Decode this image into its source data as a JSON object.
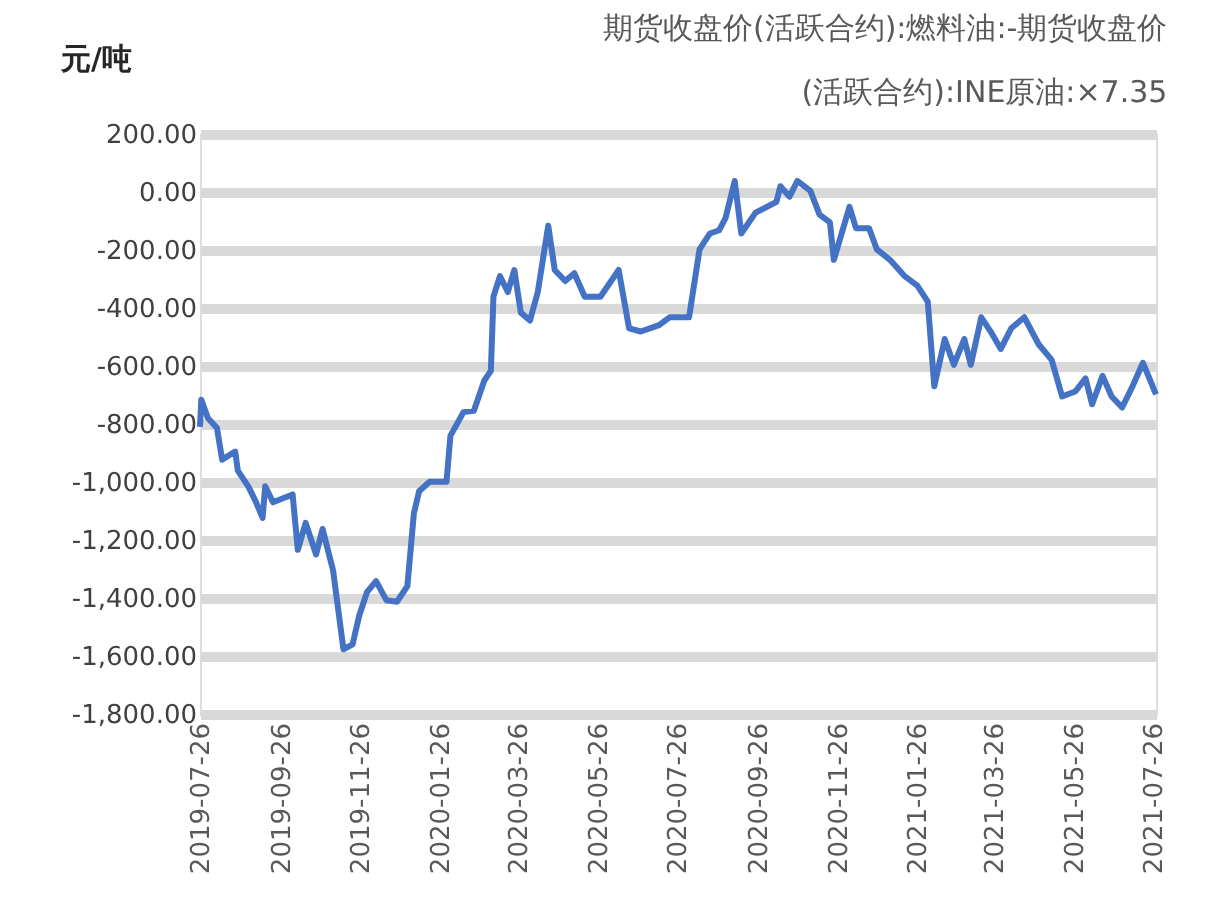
{
  "chart_data": {
    "type": "line",
    "title": "期货收盘价(活跃合约):燃料油:-期货收盘价(活跃合约):INE原油:×7.35",
    "ylabel": "元/吨",
    "x": [
      "2019-07-26",
      "2019-07-27",
      "2019-08-01",
      "2019-08-08",
      "2019-08-12",
      "2019-08-22",
      "2019-08-24",
      "2019-09-01",
      "2019-09-07",
      "2019-09-12",
      "2019-09-14",
      "2019-09-20",
      "2019-10-05",
      "2019-10-09",
      "2019-10-15",
      "2019-10-23",
      "2019-10-28",
      "2019-11-05",
      "2019-11-13",
      "2019-11-20",
      "2019-11-25",
      "2019-12-01",
      "2019-12-08",
      "2019-12-16",
      "2019-12-24",
      "2020-01-01",
      "2020-01-06",
      "2020-01-10",
      "2020-01-18",
      "2020-01-31",
      "2020-02-03",
      "2020-02-13",
      "2020-02-21",
      "2020-02-29",
      "2020-03-05",
      "2020-03-07",
      "2020-03-12",
      "2020-03-18",
      "2020-03-23",
      "2020-03-28",
      "2020-04-04",
      "2020-04-10",
      "2020-04-18",
      "2020-04-23",
      "2020-05-01",
      "2020-05-08",
      "2020-05-16",
      "2020-05-28",
      "2020-06-11",
      "2020-06-19",
      "2020-06-28",
      "2020-07-12",
      "2020-07-20",
      "2020-08-04",
      "2020-08-12",
      "2020-08-20",
      "2020-08-27",
      "2020-09-01",
      "2020-09-08",
      "2020-09-13",
      "2020-09-24",
      "2020-10-10",
      "2020-10-13",
      "2020-10-20",
      "2020-10-26",
      "2020-11-05",
      "2020-11-12",
      "2020-11-20",
      "2020-11-23",
      "2020-12-05",
      "2020-12-10",
      "2020-12-20",
      "2020-12-26",
      "2021-01-05",
      "2021-01-16",
      "2021-01-26",
      "2021-02-03",
      "2021-02-08",
      "2021-02-16",
      "2021-02-23",
      "2021-03-03",
      "2021-03-08",
      "2021-03-16",
      "2021-03-24",
      "2021-03-31",
      "2021-04-08",
      "2021-04-18",
      "2021-04-29",
      "2021-05-09",
      "2021-05-17",
      "2021-05-27",
      "2021-06-04",
      "2021-06-09",
      "2021-06-17",
      "2021-06-24",
      "2021-07-02",
      "2021-07-10",
      "2021-07-18",
      "2021-07-28"
    ],
    "series": [
      {
        "color": "#4472c4",
        "values": [
          -810,
          -716,
          -779,
          -814,
          -923,
          -895,
          -961,
          -1015,
          -1070,
          -1124,
          -1015,
          -1070,
          -1043,
          -1234,
          -1141,
          -1250,
          -1162,
          -1304,
          -1577,
          -1560,
          -1462,
          -1380,
          -1342,
          -1408,
          -1413,
          -1359,
          -1108,
          -1032,
          -999,
          -999,
          -841,
          -759,
          -754,
          -650,
          -617,
          -361,
          -290,
          -345,
          -269,
          -416,
          -443,
          -345,
          -116,
          -269,
          -307,
          -280,
          -361,
          -361,
          -269,
          -470,
          -481,
          -459,
          -432,
          -432,
          -198,
          -143,
          -132,
          -89,
          38,
          -143,
          -71,
          -34,
          20,
          -16,
          38,
          4,
          -78,
          -105,
          -234,
          -51,
          -125,
          -125,
          -198,
          -234,
          -289,
          -323,
          -378,
          -670,
          -507,
          -596,
          -507,
          -596,
          -432,
          -487,
          -541,
          -470,
          -432,
          -525,
          -579,
          -705,
          -688,
          -643,
          -732,
          -634,
          -705,
          -743,
          -670,
          -589,
          -698
        ]
      }
    ],
    "xlim": [
      "2019-07-26",
      "2021-07-28"
    ],
    "xticks": [
      "2019-07-26",
      "2019-09-26",
      "2019-11-26",
      "2020-01-26",
      "2020-03-26",
      "2020-05-26",
      "2020-07-26",
      "2020-09-26",
      "2020-11-26",
      "2021-01-26",
      "2021-03-26",
      "2021-05-26",
      "2021-07-26"
    ],
    "ylim": [
      -1800,
      200
    ],
    "yticks": [
      {
        "value": 200,
        "label": "200.00"
      },
      {
        "value": 0,
        "label": "0.00"
      },
      {
        "value": -200,
        "label": "-200.00"
      },
      {
        "value": -400,
        "label": "-400.00"
      },
      {
        "value": -600,
        "label": "-600.00"
      },
      {
        "value": -800,
        "label": "-800.00"
      },
      {
        "value": -1000,
        "label": "-1,000.00"
      },
      {
        "value": -1200,
        "label": "-1,200.00"
      },
      {
        "value": -1400,
        "label": "-1,400.00"
      },
      {
        "value": -1600,
        "label": "-1,600.00"
      },
      {
        "value": -1800,
        "label": "-1,800.00"
      }
    ],
    "grid": "y",
    "marker": "none",
    "line_style": "solid"
  }
}
